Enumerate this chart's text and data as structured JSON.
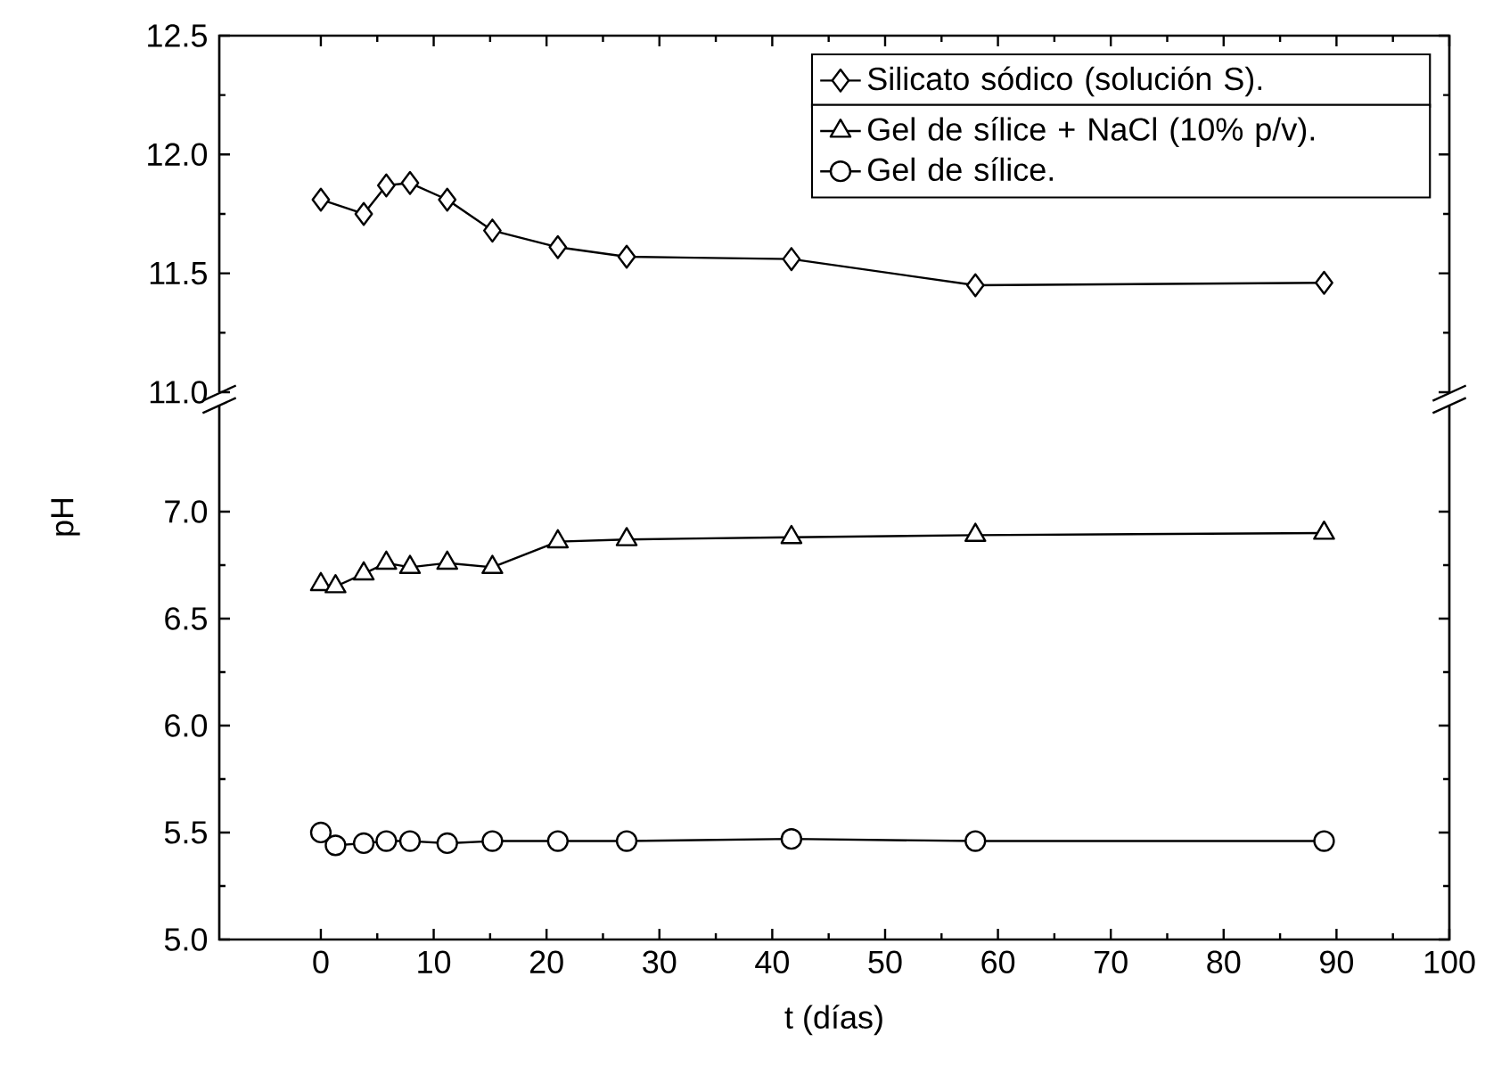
{
  "chart_data": [
    {
      "type": "line",
      "xlim": [
        -9,
        100
      ],
      "ylim": [
        11.0,
        12.5
      ],
      "xticks": [
        0,
        10,
        20,
        30,
        40,
        50,
        60,
        70,
        80,
        90,
        100
      ],
      "yticks": [
        {
          "value": 11.0,
          "label": "11.0"
        },
        11.5,
        {
          "value": 12.0,
          "label": "12.0"
        },
        12.5
      ],
      "tick_labels": "y",
      "legend": "top right",
      "series": [
        {
          "name": "Silicato sódico (solución S).",
          "color": "#000000",
          "marker": "diamond",
          "x": [
            0,
            3.8,
            5.8,
            7.9,
            11.2,
            15.2,
            21.0,
            27.1,
            41.7,
            58.0,
            88.9
          ],
          "values": [
            11.81,
            11.75,
            11.87,
            11.88,
            11.81,
            11.68,
            11.61,
            11.57,
            11.56,
            11.45,
            11.46
          ]
        }
      ]
    },
    {
      "type": "line",
      "xlim": [
        -9,
        100
      ],
      "ylim": [
        5.0,
        7.5
      ],
      "xlabel": "t (días)",
      "ylabel": "pH",
      "xticks": [
        0,
        10,
        20,
        30,
        40,
        50,
        60,
        70,
        80,
        90,
        100
      ],
      "yticks": [
        {
          "value": 5.0,
          "label": "5.0"
        },
        5.5,
        {
          "value": 6.0,
          "label": "6.0"
        },
        6.5,
        {
          "value": 7.0,
          "label": "7.0"
        }
      ],
      "legend": "top right",
      "series": [
        {
          "name": "Gel de sílice + NaCl (10% p/v).",
          "color": "#000000",
          "marker": "triangle",
          "x": [
            0,
            1.3,
            3.8,
            5.8,
            7.9,
            11.2,
            15.2,
            21.0,
            27.1,
            41.7,
            58.0,
            88.9
          ],
          "values": [
            6.66,
            6.65,
            6.71,
            6.76,
            6.74,
            6.76,
            6.74,
            6.86,
            6.87,
            6.88,
            6.89,
            6.9
          ]
        },
        {
          "name": "Gel de sílice.",
          "color": "#000000",
          "marker": "circle",
          "x": [
            0,
            1.3,
            3.8,
            5.8,
            7.9,
            11.2,
            15.2,
            21.0,
            27.1,
            41.7,
            58.0,
            88.9
          ],
          "values": [
            5.5,
            5.44,
            5.45,
            5.46,
            5.46,
            5.45,
            5.46,
            5.46,
            5.46,
            5.47,
            5.46,
            5.46
          ]
        }
      ]
    }
  ]
}
